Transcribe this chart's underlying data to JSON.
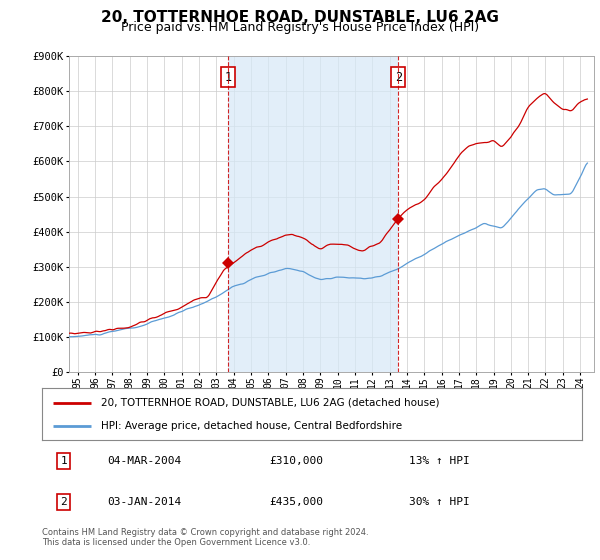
{
  "title": "20, TOTTERNHOE ROAD, DUNSTABLE, LU6 2AG",
  "subtitle": "Price paid vs. HM Land Registry's House Price Index (HPI)",
  "ylabel_ticks": [
    "£0",
    "£100K",
    "£200K",
    "£300K",
    "£400K",
    "£500K",
    "£600K",
    "£700K",
    "£800K",
    "£900K"
  ],
  "ylim": [
    0,
    900000
  ],
  "xlim_start": 1995.0,
  "xlim_end": 2025.3,
  "legend_line1": "20, TOTTERNHOE ROAD, DUNSTABLE, LU6 2AG (detached house)",
  "legend_line2": "HPI: Average price, detached house, Central Bedfordshire",
  "transaction1_label": "1",
  "transaction1_date": "04-MAR-2004",
  "transaction1_price": "£310,000",
  "transaction1_hpi": "13% ↑ HPI",
  "transaction2_label": "2",
  "transaction2_date": "03-JAN-2014",
  "transaction2_price": "£435,000",
  "transaction2_hpi": "30% ↑ HPI",
  "footer": "Contains HM Land Registry data © Crown copyright and database right 2024.\nThis data is licensed under the Open Government Licence v3.0.",
  "hpi_color": "#5b9bd5",
  "hpi_fill_color": "#d6e8f7",
  "price_color": "#cc0000",
  "transaction_marker_color": "#cc0000",
  "transaction1_x": 2004.17,
  "transaction1_y": 310000,
  "transaction2_x": 2014.0,
  "transaction2_y": 435000,
  "vline1_x": 2004.17,
  "vline2_x": 2014.0,
  "background_color": "#ffffff",
  "grid_color": "#cccccc",
  "title_fontsize": 11,
  "subtitle_fontsize": 9
}
